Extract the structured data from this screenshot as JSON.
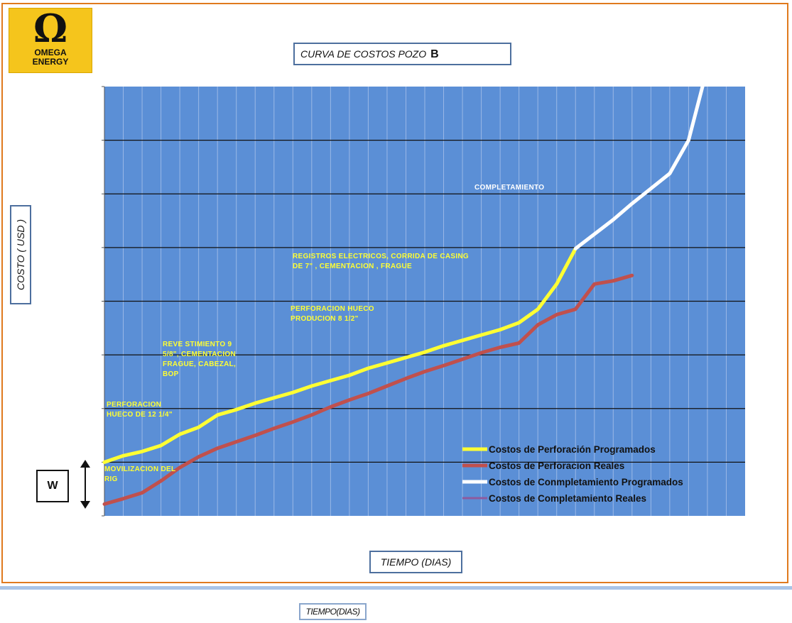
{
  "logo": {
    "symbol": "Ω",
    "line1": "OMEGA",
    "line2": "ENERGY"
  },
  "chart_data": {
    "type": "line",
    "title": "CURVA DE COSTOS POZO",
    "title_suffix": "B",
    "xlabel": "TIEMPO (DIAS)",
    "ylabel": "COSTO ( USD )",
    "x_ticks_labeled": false,
    "y_ticks_labeled": false,
    "grid": true,
    "legend_position": "bottom-right",
    "colors": {
      "plot_bg": "#5b8fd6",
      "gridline": "#111111",
      "annotation": "#ffff33"
    },
    "series": [
      {
        "name": "Costos de Perforación Programados",
        "color": "#ffff33",
        "points": [
          [
            0,
            1.0
          ],
          [
            1,
            1.12
          ],
          [
            2,
            1.2
          ],
          [
            3,
            1.31
          ],
          [
            4,
            1.52
          ],
          [
            5,
            1.65
          ],
          [
            6,
            1.88
          ],
          [
            7,
            1.98
          ],
          [
            8,
            2.1
          ],
          [
            9,
            2.2
          ],
          [
            10,
            2.3
          ],
          [
            11,
            2.42
          ],
          [
            12,
            2.52
          ],
          [
            13,
            2.62
          ],
          [
            14,
            2.75
          ],
          [
            15,
            2.85
          ],
          [
            16,
            2.95
          ],
          [
            17,
            3.05
          ],
          [
            18,
            3.17
          ],
          [
            19,
            3.27
          ],
          [
            20,
            3.37
          ],
          [
            21,
            3.47
          ],
          [
            22,
            3.6
          ],
          [
            23,
            3.85
          ],
          [
            24,
            4.32
          ],
          [
            25,
            4.98
          ]
        ]
      },
      {
        "name": "Costos de Perforacion Reales",
        "color": "#c0504d",
        "points": [
          [
            0,
            0.22
          ],
          [
            1,
            0.32
          ],
          [
            2,
            0.43
          ],
          [
            3,
            0.65
          ],
          [
            4,
            0.9
          ],
          [
            5,
            1.1
          ],
          [
            6,
            1.26
          ],
          [
            7,
            1.38
          ],
          [
            8,
            1.5
          ],
          [
            9,
            1.63
          ],
          [
            10,
            1.75
          ],
          [
            11,
            1.88
          ],
          [
            12,
            2.03
          ],
          [
            13,
            2.16
          ],
          [
            14,
            2.28
          ],
          [
            15,
            2.42
          ],
          [
            16,
            2.56
          ],
          [
            17,
            2.69
          ],
          [
            18,
            2.8
          ],
          [
            19,
            2.92
          ],
          [
            20,
            3.04
          ],
          [
            21,
            3.14
          ],
          [
            22,
            3.22
          ],
          [
            23,
            3.56
          ],
          [
            24,
            3.75
          ],
          [
            25,
            3.85
          ],
          [
            26,
            4.32
          ],
          [
            27,
            4.38
          ],
          [
            28,
            4.48
          ]
        ]
      },
      {
        "name": "Costos de Conmpletamiento Programados",
        "color": "#ffffff",
        "points": [
          [
            25,
            4.98
          ],
          [
            26,
            5.25
          ],
          [
            27,
            5.52
          ],
          [
            28,
            5.82
          ],
          [
            29,
            6.1
          ],
          [
            30,
            6.38
          ],
          [
            31,
            7.0
          ],
          [
            32,
            8.35
          ]
        ]
      },
      {
        "name": "Costos de Completamiento Reales",
        "color": "#8e5a9e",
        "points": []
      }
    ],
    "annotations": [
      {
        "lines": [
          "MOVILIZACION  DEL",
          "RIG"
        ],
        "color": "#ffff33"
      },
      {
        "lines": [
          "PERFORACION",
          "HUECO DE  12 1/4\""
        ],
        "color": "#ffff33"
      },
      {
        "lines": [
          "REVE STIMIENTO 9",
          "5/8\", CEMENTACION",
          "FRAGUE, CABEZAL,",
          "BOP"
        ],
        "color": "#ffff33"
      },
      {
        "lines": [
          "PERFORACION HUECO",
          "PRODUCION  8 1/2\""
        ],
        "color": "#ffff33"
      },
      {
        "lines": [
          "REGISTROS ELECTRICOS,   CORRIDA  DE CASING",
          "DE 7\" , CEMENTACION , FRAGUE"
        ],
        "color": "#ffff33"
      },
      {
        "lines": [
          "COMPLETAMIENTO"
        ],
        "color": "#ffffff"
      }
    ],
    "extra_xlabel": "TIEMPO(DIAS)",
    "w_label": "W"
  }
}
